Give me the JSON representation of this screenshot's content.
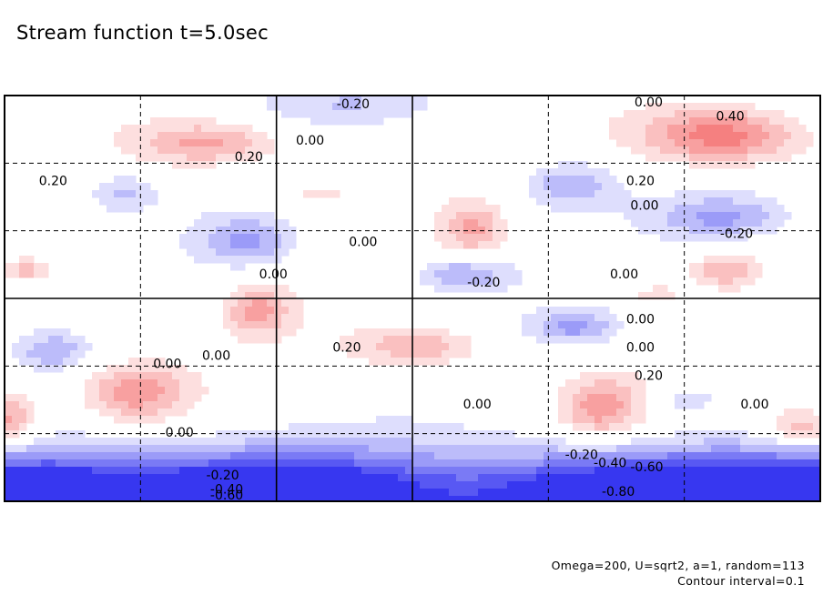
{
  "chart_data": {
    "type": "contour",
    "title": "Stream function t=5.0sec",
    "field": "stream function",
    "time": "t=5.0sec",
    "parameters_note": "Omega=200, U=sqrt2, a=1, random=113",
    "contour_interval_note": "Contour interval=0.1",
    "contour_interval": 0.1,
    "grid": true,
    "grid_divisions": {
      "x": 6,
      "y": 6
    },
    "solid_grid_lines": {
      "x": [
        2,
        3
      ],
      "y": [
        3
      ]
    },
    "value_range": [
      -0.9,
      0.5
    ],
    "colors": {
      "positive": "#f04040",
      "negative": "#3030f0",
      "zero": "#ffffff"
    },
    "contour_labels": [
      {
        "text": "0.20",
        "x": 0.06,
        "y": 0.21
      },
      {
        "text": "-0.20",
        "x": 0.425,
        "y": 0.02
      },
      {
        "text": "0.00",
        "x": 0.375,
        "y": 0.11
      },
      {
        "text": "0.20",
        "x": 0.3,
        "y": 0.15
      },
      {
        "text": "0.00",
        "x": 0.79,
        "y": 0.0
      },
      {
        "text": "0.40",
        "x": 0.89,
        "y": 0.05
      },
      {
        "text": "0.20",
        "x": 0.78,
        "y": 0.21
      },
      {
        "text": "0.00",
        "x": 0.785,
        "y": 0.27
      },
      {
        "text": "-0.20",
        "x": 0.895,
        "y": 0.34
      },
      {
        "text": "0.00",
        "x": 0.44,
        "y": 0.36
      },
      {
        "text": "0.00",
        "x": 0.33,
        "y": 0.44
      },
      {
        "text": "-0.20",
        "x": 0.585,
        "y": 0.46
      },
      {
        "text": "0.00",
        "x": 0.76,
        "y": 0.44
      },
      {
        "text": "0.00",
        "x": 0.78,
        "y": 0.55
      },
      {
        "text": "0.00",
        "x": 0.78,
        "y": 0.62
      },
      {
        "text": "0.20",
        "x": 0.42,
        "y": 0.62
      },
      {
        "text": "0.00",
        "x": 0.26,
        "y": 0.64
      },
      {
        "text": "0.00",
        "x": 0.2,
        "y": 0.66
      },
      {
        "text": "0.20",
        "x": 0.79,
        "y": 0.69
      },
      {
        "text": "0.00",
        "x": 0.58,
        "y": 0.76
      },
      {
        "text": "0.00",
        "x": 0.92,
        "y": 0.76
      },
      {
        "text": "0.00",
        "x": 0.215,
        "y": 0.83
      },
      {
        "text": "-0.20",
        "x": 0.705,
        "y": 0.885
      },
      {
        "text": "-0.40",
        "x": 0.74,
        "y": 0.905
      },
      {
        "text": "-0.60",
        "x": 0.785,
        "y": 0.915
      },
      {
        "text": "-0.20",
        "x": 0.265,
        "y": 0.935
      },
      {
        "text": "-0.40",
        "x": 0.27,
        "y": 0.97
      },
      {
        "text": "-0.60",
        "x": 0.27,
        "y": 0.99
      },
      {
        "text": "-0.80",
        "x": 0.75,
        "y": 0.975
      }
    ],
    "extrema": [
      {
        "sign": "+",
        "x": 0.88,
        "y": 0.1,
        "amp": 0.5,
        "rx": 0.1,
        "ry": 0.07
      },
      {
        "sign": "+",
        "x": 0.25,
        "y": 0.12,
        "amp": 0.35,
        "rx": 0.09,
        "ry": 0.055
      },
      {
        "sign": "-",
        "x": 0.42,
        "y": 0.02,
        "amp": 0.15,
        "rx": 0.12,
        "ry": 0.05
      },
      {
        "sign": "-",
        "x": 0.05,
        "y": 0.22,
        "amp": 0.15,
        "rx": 0.07,
        "ry": 0.1
      },
      {
        "sign": "-",
        "x": 0.15,
        "y": 0.24,
        "amp": 0.2,
        "rx": 0.035,
        "ry": 0.04
      },
      {
        "sign": "+",
        "x": 0.38,
        "y": 0.24,
        "amp": 0.15,
        "rx": 0.05,
        "ry": 0.04
      },
      {
        "sign": "-",
        "x": 0.69,
        "y": 0.22,
        "amp": 0.3,
        "rx": 0.06,
        "ry": 0.06
      },
      {
        "sign": "+",
        "x": 0.575,
        "y": 0.33,
        "amp": 0.3,
        "rx": 0.035,
        "ry": 0.06
      },
      {
        "sign": "-",
        "x": 0.3,
        "y": 0.36,
        "amp": 0.3,
        "rx": 0.06,
        "ry": 0.06
      },
      {
        "sign": "-",
        "x": 0.88,
        "y": 0.3,
        "amp": 0.3,
        "rx": 0.08,
        "ry": 0.05
      },
      {
        "sign": "+",
        "x": 0.03,
        "y": 0.43,
        "amp": 0.25,
        "rx": 0.03,
        "ry": 0.03
      },
      {
        "sign": "-",
        "x": 0.56,
        "y": 0.44,
        "amp": 0.3,
        "rx": 0.06,
        "ry": 0.045
      },
      {
        "sign": "+",
        "x": 0.88,
        "y": 0.43,
        "amp": 0.3,
        "rx": 0.04,
        "ry": 0.04
      },
      {
        "sign": "+",
        "x": 0.31,
        "y": 0.53,
        "amp": 0.3,
        "rx": 0.04,
        "ry": 0.06
      },
      {
        "sign": "+",
        "x": 0.8,
        "y": 0.49,
        "amp": 0.2,
        "rx": 0.03,
        "ry": 0.025
      },
      {
        "sign": "-",
        "x": 0.7,
        "y": 0.57,
        "amp": 0.3,
        "rx": 0.05,
        "ry": 0.04
      },
      {
        "sign": "-",
        "x": 0.06,
        "y": 0.63,
        "amp": 0.25,
        "rx": 0.04,
        "ry": 0.04
      },
      {
        "sign": "+",
        "x": 0.51,
        "y": 0.62,
        "amp": 0.3,
        "rx": 0.08,
        "ry": 0.05
      },
      {
        "sign": "+",
        "x": 0.16,
        "y": 0.73,
        "amp": 0.35,
        "rx": 0.06,
        "ry": 0.07
      },
      {
        "sign": "+",
        "x": 0.73,
        "y": 0.77,
        "amp": 0.35,
        "rx": 0.05,
        "ry": 0.08
      },
      {
        "sign": "+",
        "x": 0.0,
        "y": 0.8,
        "amp": 0.4,
        "rx": 0.04,
        "ry": 0.07
      },
      {
        "sign": "+",
        "x": 0.98,
        "y": 0.82,
        "amp": 0.35,
        "rx": 0.05,
        "ry": 0.05
      },
      {
        "sign": "-",
        "x": 0.84,
        "y": 0.75,
        "amp": 0.2,
        "rx": 0.04,
        "ry": 0.03
      }
    ],
    "boundary_band": {
      "sign": "-",
      "y": 1.0,
      "amp": 0.88,
      "thickness": 0.12
    }
  }
}
